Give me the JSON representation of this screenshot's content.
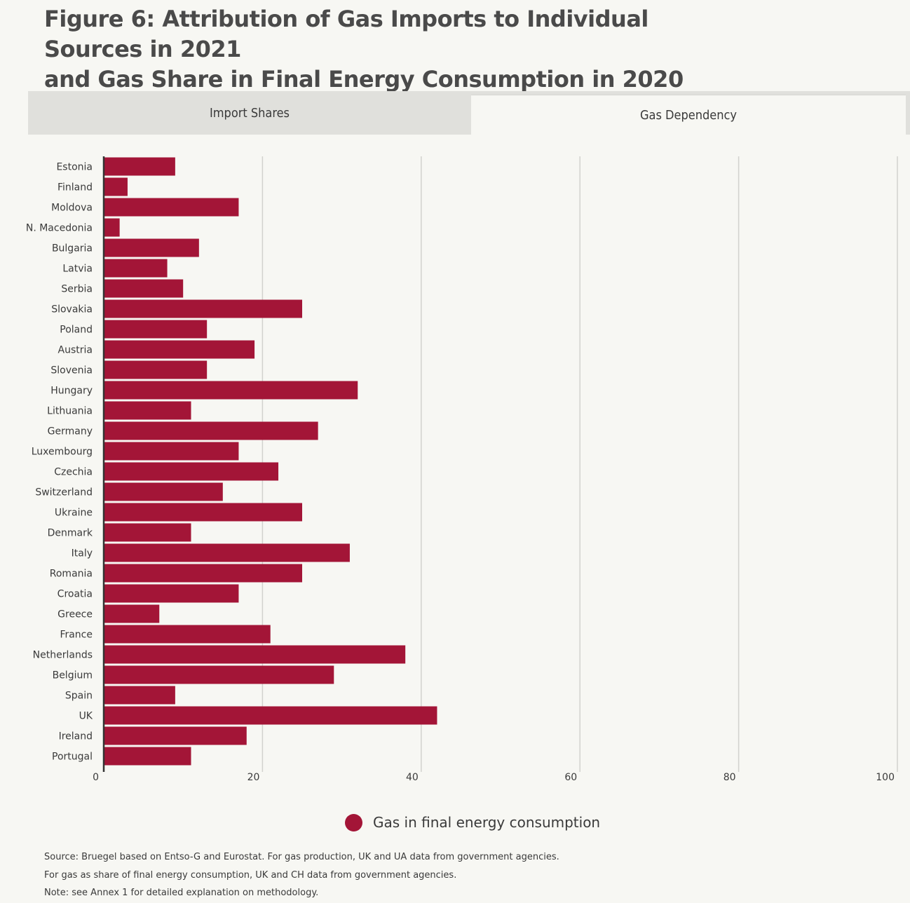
{
  "title": {
    "line1": "Figure 6: Attribution of Gas Imports to Individual Sources in 2021",
    "line2": "and Gas Share in Final Energy Consumption in 2020"
  },
  "tabs": [
    {
      "label": "Import Shares",
      "active": false
    },
    {
      "label": "Gas Dependency",
      "active": true
    }
  ],
  "chart_data": {
    "type": "bar",
    "orientation": "horizontal",
    "categories": [
      "Estonia",
      "Finland",
      "Moldova",
      "N. Macedonia",
      "Bulgaria",
      "Latvia",
      "Serbia",
      "Slovakia",
      "Poland",
      "Austria",
      "Slovenia",
      "Hungary",
      "Lithuania",
      "Germany",
      "Luxembourg",
      "Czechia",
      "Switzerland",
      "Ukraine",
      "Denmark",
      "Italy",
      "Romania",
      "Croatia",
      "Greece",
      "France",
      "Netherlands",
      "Belgium",
      "Spain",
      "UK",
      "Ireland",
      "Portugal"
    ],
    "series": [
      {
        "name": "Gas in final energy consumption",
        "values": [
          9,
          3,
          17,
          2,
          12,
          8,
          10,
          25,
          13,
          19,
          13,
          32,
          11,
          27,
          17,
          22,
          15,
          25,
          11,
          31,
          25,
          17,
          7,
          21,
          38,
          29,
          9,
          42,
          18,
          11
        ]
      }
    ],
    "xlim": [
      0,
      100
    ],
    "xticks": [
      "0",
      "20",
      "40",
      "60",
      "80",
      "100"
    ],
    "grid": true,
    "legend_position": "bottom-center",
    "bar_color": "#a31537"
  },
  "legend": {
    "label": "Gas in final energy consumption"
  },
  "notes": [
    "Source: Bruegel based on Entso-G and Eurostat. For gas production, UK and UA data from government agencies.",
    "For gas as share of final energy consumption, UK and CH data from government agencies.",
    "Note: see Annex 1 for detailed explanation on methodology."
  ]
}
